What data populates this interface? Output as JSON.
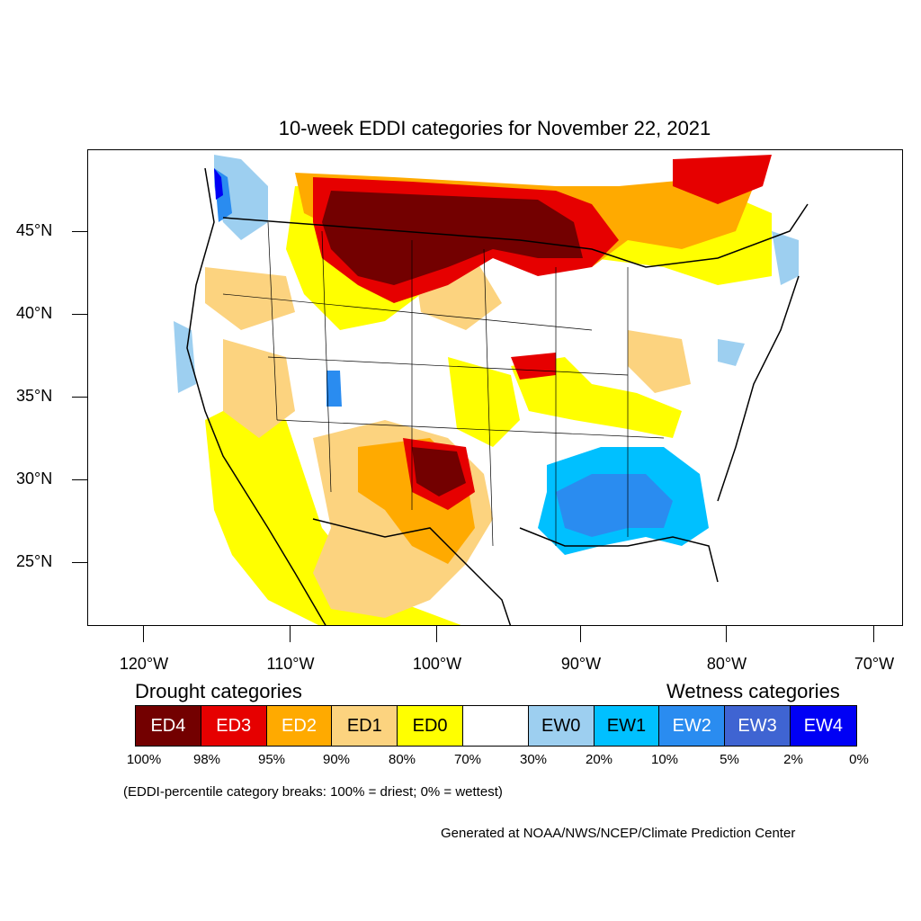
{
  "title": "10-week EDDI categories for November 22, 2021",
  "lat_labels": [
    "45°N",
    "40°N",
    "35°N",
    "30°N",
    "25°N"
  ],
  "lon_labels": [
    "120°W",
    "110°W",
    "100°W",
    "90°W",
    "80°W",
    "70°W"
  ],
  "drought_heading": "Drought categories",
  "wetness_heading": "Wetness categories",
  "legend": [
    {
      "label": "ED4",
      "color": "#730000",
      "text_color": "#ffffff"
    },
    {
      "label": "ED3",
      "color": "#e60000",
      "text_color": "#ffffff"
    },
    {
      "label": "ED2",
      "color": "#ffaa00",
      "text_color": "#ffffff"
    },
    {
      "label": "ED1",
      "color": "#fcd37f",
      "text_color": "#000000"
    },
    {
      "label": "ED0",
      "color": "#ffff00",
      "text_color": "#000000"
    },
    {
      "label": "",
      "color": "#ffffff",
      "text_color": "#000000"
    },
    {
      "label": "EW0",
      "color": "#9dcff0",
      "text_color": "#000000"
    },
    {
      "label": "EW1",
      "color": "#00c0ff",
      "text_color": "#000000"
    },
    {
      "label": "EW2",
      "color": "#2a8cf0",
      "text_color": "#ffffff"
    },
    {
      "label": "EW3",
      "color": "#3f64d2",
      "text_color": "#ffffff"
    },
    {
      "label": "EW4",
      "color": "#0000f5",
      "text_color": "#ffffff"
    }
  ],
  "breaks": [
    "100%",
    "98%",
    "95%",
    "90%",
    "80%",
    "70%",
    "30%",
    "20%",
    "10%",
    "5%",
    "2%",
    "0%"
  ],
  "note": "(EDDI-percentile category breaks: 100% = driest; 0% = wettest)",
  "credit": "Generated at NOAA/NWS/NCEP/Climate Prediction Center"
}
